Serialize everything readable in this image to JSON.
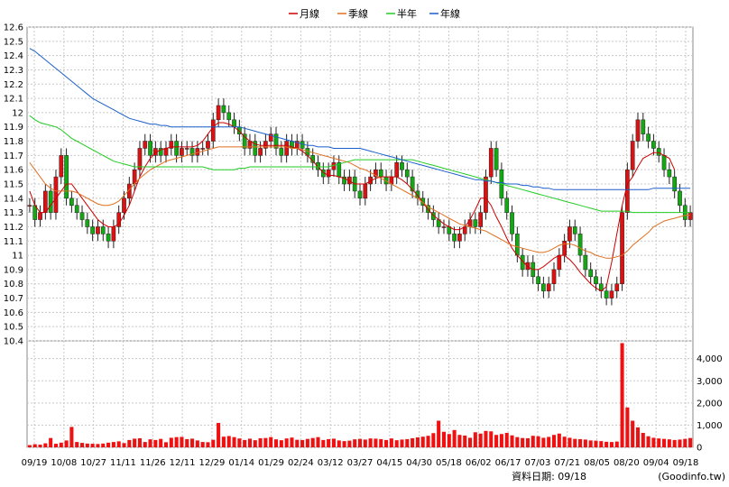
{
  "chart_data": {
    "type": "candlestick",
    "legend": [
      {
        "name": "月線",
        "color": "#cc0000"
      },
      {
        "name": "季線",
        "color": "#e07020"
      },
      {
        "name": "半年",
        "color": "#22cc22"
      },
      {
        "name": "年線",
        "color": "#1a5fcc"
      }
    ],
    "price_axis": {
      "ylim": [
        10.4,
        12.6
      ],
      "ticks": [
        "12.6",
        "12.5",
        "12.4",
        "12.3",
        "12.2",
        "12.1",
        "12",
        "11.9",
        "11.8",
        "11.7",
        "11.6",
        "11.5",
        "11.4",
        "11.3",
        "11.2",
        "11.1",
        "11",
        "10.9",
        "10.8",
        "10.7",
        "10.6",
        "10.5",
        "10.4"
      ]
    },
    "volume_axis": {
      "ylim": [
        0,
        4800
      ],
      "ticks": [
        "4,000",
        "3,000",
        "2,000",
        "1,000",
        "0"
      ],
      "tick_values": [
        4000,
        3000,
        2000,
        1000,
        0
      ]
    },
    "x_ticks": [
      "09/19",
      "10/08",
      "10/27",
      "11/11",
      "11/26",
      "12/11",
      "12/29",
      "01/14",
      "01/29",
      "02/24",
      "03/12",
      "03/27",
      "04/15",
      "04/30",
      "05/18",
      "06/02",
      "06/17",
      "07/03",
      "07/21",
      "08/05",
      "08/20",
      "09/04",
      "09/18"
    ],
    "close": [
      11.35,
      11.25,
      11.3,
      11.45,
      11.3,
      11.55,
      11.7,
      11.4,
      11.35,
      11.3,
      11.25,
      11.2,
      11.15,
      11.2,
      11.15,
      11.1,
      11.2,
      11.3,
      11.4,
      11.5,
      11.6,
      11.75,
      11.8,
      11.7,
      11.75,
      11.7,
      11.75,
      11.8,
      11.7,
      11.75,
      11.75,
      11.7,
      11.75,
      11.75,
      11.8,
      11.95,
      12.05,
      12.0,
      11.95,
      11.9,
      11.85,
      11.75,
      11.8,
      11.7,
      11.75,
      11.8,
      11.85,
      11.75,
      11.7,
      11.8,
      11.75,
      11.8,
      11.75,
      11.7,
      11.65,
      11.6,
      11.55,
      11.6,
      11.65,
      11.55,
      11.5,
      11.55,
      11.45,
      11.4,
      11.5,
      11.55,
      11.6,
      11.55,
      11.5,
      11.55,
      11.65,
      11.6,
      11.55,
      11.45,
      11.4,
      11.35,
      11.3,
      11.25,
      11.2,
      11.2,
      11.15,
      11.1,
      11.15,
      11.2,
      11.25,
      11.2,
      11.3,
      11.55,
      11.75,
      11.6,
      11.4,
      11.3,
      11.15,
      11.0,
      10.9,
      10.95,
      10.85,
      10.8,
      10.75,
      10.8,
      10.9,
      11.0,
      11.1,
      11.2,
      11.15,
      11.0,
      10.9,
      10.85,
      10.8,
      10.75,
      10.7,
      10.75,
      10.8,
      11.3,
      11.6,
      11.8,
      11.95,
      11.85,
      11.8,
      11.75,
      11.7,
      11.6,
      11.55,
      11.45,
      11.35,
      11.25,
      11.3
    ],
    "ma_month": [
      11.45,
      11.35,
      11.3,
      11.3,
      11.35,
      11.4,
      11.45,
      11.5,
      11.5,
      11.45,
      11.4,
      11.35,
      11.3,
      11.25,
      11.22,
      11.2,
      11.2,
      11.22,
      11.28,
      11.35,
      11.45,
      11.55,
      11.62,
      11.68,
      11.72,
      11.74,
      11.75,
      11.76,
      11.76,
      11.76,
      11.76,
      11.76,
      11.77,
      11.8,
      11.85,
      11.9,
      11.93,
      11.93,
      11.92,
      11.9,
      11.87,
      11.83,
      11.8,
      11.78,
      11.77,
      11.77,
      11.77,
      11.77,
      11.77,
      11.77,
      11.76,
      11.75,
      11.73,
      11.7,
      11.66,
      11.62,
      11.58,
      11.56,
      11.56,
      11.55,
      11.54,
      11.52,
      11.5,
      11.5,
      11.5,
      11.52,
      11.54,
      11.55,
      11.55,
      11.55,
      11.55,
      11.53,
      11.5,
      11.46,
      11.42,
      11.37,
      11.32,
      11.28,
      11.25,
      11.22,
      11.2,
      11.18,
      11.18,
      11.2,
      11.25,
      11.32,
      11.4,
      11.4,
      11.35,
      11.27,
      11.2,
      11.12,
      11.05,
      11.0,
      10.96,
      10.92,
      10.9,
      10.9,
      10.92,
      10.95,
      10.98,
      11.0,
      11.0,
      10.97,
      10.93,
      10.88,
      10.84,
      10.8,
      10.77,
      10.75,
      10.78,
      10.95,
      11.15,
      11.35,
      11.5,
      11.55,
      11.62,
      11.68,
      11.7,
      11.72,
      11.72,
      11.7,
      11.68,
      11.6
    ],
    "ma_quarter": [
      11.65,
      11.6,
      11.55,
      11.5,
      11.47,
      11.45,
      11.45,
      11.45,
      11.45,
      11.44,
      11.42,
      11.4,
      11.38,
      11.36,
      11.35,
      11.35,
      11.36,
      11.38,
      11.42,
      11.46,
      11.5,
      11.54,
      11.57,
      11.6,
      11.62,
      11.64,
      11.66,
      11.67,
      11.68,
      11.69,
      11.7,
      11.71,
      11.72,
      11.73,
      11.74,
      11.75,
      11.76,
      11.76,
      11.76,
      11.76,
      11.76,
      11.76,
      11.76,
      11.76,
      11.76,
      11.76,
      11.76,
      11.76,
      11.76,
      11.76,
      11.75,
      11.75,
      11.74,
      11.73,
      11.72,
      11.71,
      11.7,
      11.69,
      11.68,
      11.67,
      11.66,
      11.65,
      11.63,
      11.61,
      11.6,
      11.58,
      11.56,
      11.54,
      11.52,
      11.5,
      11.48,
      11.46,
      11.44,
      11.42,
      11.4,
      11.37,
      11.34,
      11.32,
      11.3,
      11.28,
      11.26,
      11.24,
      11.22,
      11.21,
      11.2,
      11.19,
      11.18,
      11.17,
      11.15,
      11.13,
      11.11,
      11.09,
      11.07,
      11.06,
      11.05,
      11.04,
      11.03,
      11.02,
      11.02,
      11.03,
      11.05,
      11.07,
      11.08,
      11.08,
      11.07,
      11.05,
      11.03,
      11.02,
      11.0,
      10.99,
      10.98,
      10.98,
      10.99,
      11.0,
      11.03,
      11.07,
      11.1,
      11.13,
      11.16,
      11.2,
      11.22,
      11.24,
      11.25,
      11.26,
      11.27,
      11.28,
      11.28
    ],
    "ma_half": [
      11.98,
      11.95,
      11.93,
      11.92,
      11.91,
      11.9,
      11.88,
      11.85,
      11.82,
      11.8,
      11.78,
      11.76,
      11.74,
      11.72,
      11.7,
      11.68,
      11.66,
      11.65,
      11.64,
      11.63,
      11.62,
      11.62,
      11.62,
      11.62,
      11.62,
      11.62,
      11.62,
      11.62,
      11.62,
      11.62,
      11.62,
      11.62,
      11.62,
      11.62,
      11.61,
      11.6,
      11.6,
      11.6,
      11.6,
      11.6,
      11.61,
      11.61,
      11.62,
      11.62,
      11.62,
      11.62,
      11.62,
      11.62,
      11.62,
      11.62,
      11.62,
      11.62,
      11.62,
      11.62,
      11.62,
      11.62,
      11.62,
      11.62,
      11.63,
      11.64,
      11.65,
      11.66,
      11.67,
      11.67,
      11.67,
      11.67,
      11.67,
      11.67,
      11.67,
      11.67,
      11.67,
      11.67,
      11.67,
      11.67,
      11.66,
      11.65,
      11.64,
      11.63,
      11.62,
      11.61,
      11.6,
      11.59,
      11.58,
      11.57,
      11.56,
      11.55,
      11.54,
      11.53,
      11.52,
      11.51,
      11.5,
      11.49,
      11.48,
      11.47,
      11.46,
      11.45,
      11.44,
      11.43,
      11.42,
      11.41,
      11.4,
      11.39,
      11.38,
      11.37,
      11.36,
      11.35,
      11.34,
      11.33,
      11.32,
      11.31,
      11.31,
      11.31,
      11.31,
      11.31,
      11.31,
      11.3,
      11.3,
      11.3,
      11.3,
      11.3,
      11.3,
      11.3,
      11.3,
      11.3,
      11.3,
      11.3,
      11.3
    ],
    "ma_year": [
      12.45,
      12.43,
      12.4,
      12.37,
      12.34,
      12.31,
      12.28,
      12.25,
      12.22,
      12.19,
      12.16,
      12.13,
      12.1,
      12.08,
      12.06,
      12.04,
      12.02,
      12.0,
      11.98,
      11.96,
      11.95,
      11.94,
      11.93,
      11.92,
      11.92,
      11.91,
      11.91,
      11.9,
      11.9,
      11.9,
      11.9,
      11.9,
      11.9,
      11.9,
      11.9,
      11.9,
      11.9,
      11.9,
      11.9,
      11.9,
      11.9,
      11.89,
      11.88,
      11.87,
      11.86,
      11.85,
      11.84,
      11.83,
      11.82,
      11.81,
      11.8,
      11.79,
      11.78,
      11.77,
      11.77,
      11.76,
      11.76,
      11.76,
      11.75,
      11.75,
      11.75,
      11.75,
      11.75,
      11.75,
      11.74,
      11.73,
      11.72,
      11.71,
      11.7,
      11.69,
      11.68,
      11.67,
      11.66,
      11.65,
      11.64,
      11.63,
      11.62,
      11.61,
      11.6,
      11.59,
      11.58,
      11.57,
      11.56,
      11.55,
      11.54,
      11.53,
      11.53,
      11.52,
      11.52,
      11.51,
      11.51,
      11.5,
      11.5,
      11.5,
      11.49,
      11.49,
      11.48,
      11.48,
      11.47,
      11.47,
      11.46,
      11.46,
      11.46,
      11.46,
      11.46,
      11.46,
      11.46,
      11.46,
      11.46,
      11.46,
      11.46,
      11.46,
      11.46,
      11.46,
      11.46,
      11.46,
      11.46,
      11.46,
      11.46,
      11.47,
      11.47,
      11.47,
      11.47,
      11.47,
      11.47,
      11.47,
      11.47
    ],
    "volume": [
      100,
      140,
      120,
      180,
      420,
      160,
      210,
      310,
      920,
      240,
      200,
      170,
      160,
      150,
      170,
      210,
      240,
      270,
      190,
      330,
      390,
      410,
      240,
      360,
      330,
      380,
      230,
      430,
      460,
      470,
      370,
      390,
      310,
      240,
      230,
      340,
      1100,
      480,
      510,
      460,
      400,
      330,
      390,
      320,
      410,
      420,
      460,
      360,
      320,
      400,
      440,
      340,
      330,
      380,
      420,
      460,
      330,
      370,
      390,
      310,
      280,
      300,
      360,
      380,
      350,
      400,
      390,
      370,
      330,
      400,
      320,
      350,
      370,
      410,
      450,
      480,
      520,
      640,
      1200,
      700,
      600,
      780,
      560,
      530,
      430,
      680,
      620,
      740,
      720,
      560,
      600,
      650,
      540,
      460,
      420,
      410,
      520,
      500,
      430,
      470,
      560,
      620,
      480,
      430,
      380,
      370,
      350,
      310,
      300,
      280,
      250,
      240,
      260,
      4700,
      1800,
      1200,
      900,
      650,
      500,
      430,
      400,
      380,
      360,
      330,
      350,
      380,
      420
    ]
  },
  "footer": {
    "date_label": "資料日期: 09/18",
    "source": "(Goodinfo.tw)"
  }
}
